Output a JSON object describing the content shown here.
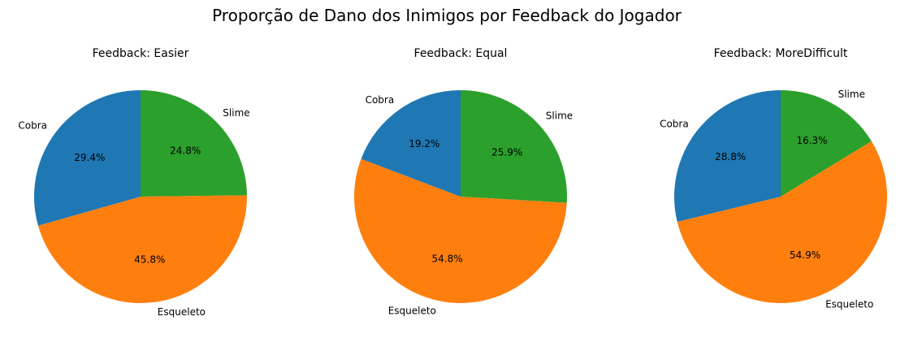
{
  "chart_data": {
    "title": "Proporção de Dano dos Inimigos por Feedback do Jogador",
    "charts": [
      {
        "type": "pie",
        "title": "Feedback: Easier",
        "labels": [
          "Slime",
          "Esqueleto",
          "Cobra"
        ],
        "values": [
          24.8,
          45.8,
          29.4
        ],
        "value_labels": [
          "24.8%",
          "45.8%",
          "29.4%"
        ],
        "colors": [
          "#2ca02c",
          "#ff7f0e",
          "#1f77b4"
        ],
        "start_angle_deg": 90,
        "direction": "clockwise"
      },
      {
        "type": "pie",
        "title": "Feedback: Equal",
        "labels": [
          "Slime",
          "Esqueleto",
          "Cobra"
        ],
        "values": [
          25.9,
          54.8,
          19.2
        ],
        "value_labels": [
          "25.9%",
          "54.8%",
          "19.2%"
        ],
        "colors": [
          "#2ca02c",
          "#ff7f0e",
          "#1f77b4"
        ],
        "start_angle_deg": 90,
        "direction": "clockwise"
      },
      {
        "type": "pie",
        "title": "Feedback: MoreDifficult",
        "labels": [
          "Slime",
          "Esqueleto",
          "Cobra"
        ],
        "values": [
          16.3,
          54.9,
          28.8
        ],
        "value_labels": [
          "16.3%",
          "54.9%",
          "28.8%"
        ],
        "colors": [
          "#2ca02c",
          "#ff7f0e",
          "#1f77b4"
        ],
        "start_angle_deg": 90,
        "direction": "clockwise"
      }
    ]
  }
}
